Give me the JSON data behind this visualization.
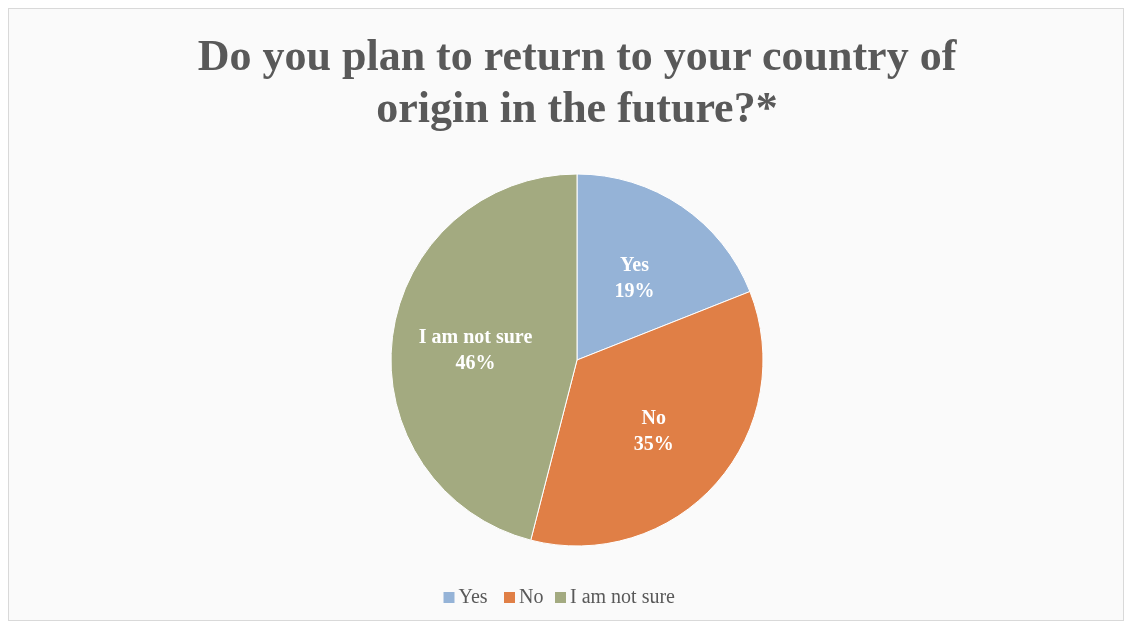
{
  "chart_data": {
    "type": "pie",
    "title": "Do you plan to return to your country of origin in the future?*",
    "categories": [
      "Yes",
      "No",
      "I am not sure"
    ],
    "values": [
      19,
      35,
      46
    ],
    "value_labels": [
      "19%",
      "35%",
      "46%"
    ],
    "colors": [
      "#95b3d7",
      "#e07f46",
      "#a3aa80"
    ],
    "legend": "bottom"
  }
}
